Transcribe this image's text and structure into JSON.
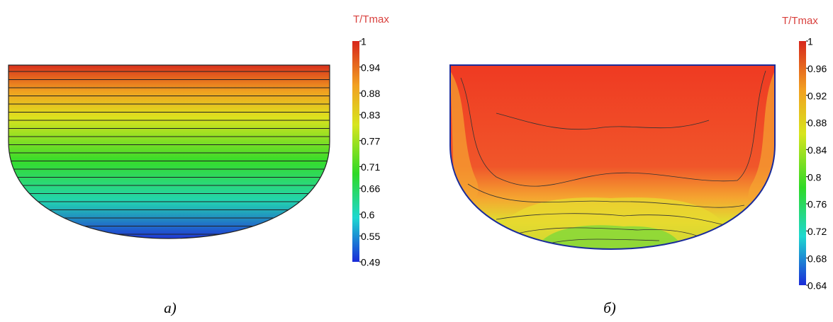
{
  "figures": [
    {
      "colorbar_title": "T/Tmax",
      "colorbar_ticks": [
        1,
        0.94,
        0.88,
        0.83,
        0.77,
        0.71,
        0.66,
        0.6,
        0.55,
        0.49
      ],
      "caption": "а)"
    },
    {
      "colorbar_title": "T/Tmax",
      "colorbar_ticks": [
        1,
        0.96,
        0.92,
        0.88,
        0.84,
        0.8,
        0.76,
        0.72,
        0.68,
        0.64
      ],
      "caption": "б)"
    }
  ]
}
